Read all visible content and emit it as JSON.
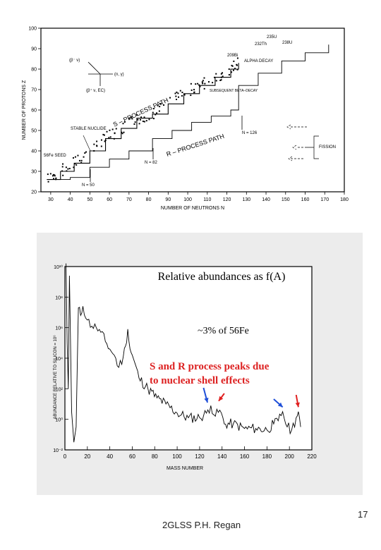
{
  "footer": {
    "text": "2GLSS P.H. Regan",
    "page_number": "17"
  },
  "chart_data": [
    {
      "type": "line",
      "xlabel": "NUMBER OF NEUTRONS N",
      "ylabel": "NUMBER OF PROTONS Z",
      "xlim": [
        25,
        180
      ],
      "ylim": [
        20,
        100
      ],
      "x_ticks": [
        30,
        40,
        50,
        60,
        70,
        80,
        90,
        100,
        110,
        120,
        130,
        140,
        150,
        160,
        170,
        180
      ],
      "y_ticks": [
        20,
        30,
        40,
        50,
        60,
        70,
        80,
        90,
        100
      ],
      "series": [
        {
          "name": "S-PROCESS PATH",
          "x": [
            28,
            35,
            42,
            50,
            58,
            66,
            74,
            82,
            90,
            98,
            106,
            114,
            122,
            126
          ],
          "y": [
            26,
            30,
            34,
            40,
            46,
            51,
            56,
            58,
            63,
            68,
            72,
            76,
            80,
            83
          ]
        },
        {
          "name": "R-PROCESS PATH",
          "x": [
            30,
            40,
            50,
            50,
            60,
            70,
            82,
            82,
            92,
            102,
            112,
            122,
            126,
            126,
            136,
            148,
            160,
            172
          ],
          "y": [
            26,
            27,
            28,
            32,
            36,
            40,
            42,
            46,
            50,
            54,
            57,
            60,
            62,
            72,
            78,
            84,
            88,
            92
          ]
        }
      ],
      "magic_numbers": [
        "N = 50",
        "N = 82",
        "N = 126"
      ],
      "annotations": [
        "S – PROCESS PATH",
        "R – PROCESS PATH",
        "STABLE NUCLIDE",
        "56Fe SEED",
        "ALPHA DECAY",
        "209Bi",
        "232Th",
        "235U",
        "238U",
        "SUBSEQUENT BETA–DECAY",
        "FISSION",
        "(n, γ)",
        "(β⁻ ν)",
        "(β⁺ ν, EC)"
      ]
    },
    {
      "type": "line",
      "title": "Relative abundances as f(A)",
      "xlabel": "MASS NUMBER",
      "ylabel": "ABUNDANCE RELATIVE TO SILICON = 10⁶",
      "xlim": [
        0,
        220
      ],
      "ylim": [
        -2,
        10
      ],
      "log_y": true,
      "x_ticks": [
        0,
        20,
        40,
        60,
        80,
        100,
        120,
        140,
        160,
        180,
        200,
        220
      ],
      "y_ticks": [
        "10⁻²",
        "10⁰",
        "10²",
        "10⁴",
        "10⁶",
        "10⁸",
        "10¹⁰"
      ],
      "series": [
        {
          "name": "abundance",
          "x": [
            1,
            2,
            3,
            4,
            6,
            8,
            10,
            12,
            14,
            16,
            20,
            24,
            28,
            32,
            36,
            40,
            44,
            48,
            52,
            54,
            56,
            58,
            60,
            66,
            74,
            82,
            90,
            100,
            110,
            120,
            126,
            130,
            134,
            138,
            142,
            150,
            160,
            170,
            180,
            186,
            190,
            194,
            198,
            202,
            206,
            208,
            210
          ],
          "y": [
            10.2,
            5,
            2,
            9.4,
            0.5,
            -1.5,
            -0.5,
            7.3,
            6.8,
            7.4,
            6.5,
            6.1,
            6.0,
            5.7,
            5.1,
            4.6,
            4.2,
            3.4,
            4.1,
            4.8,
            5.9,
            4.6,
            4.2,
            2.7,
            2.0,
            1.4,
            1.0,
            0.4,
            0.1,
            0.1,
            0.4,
            0.9,
            0.2,
            0.6,
            -0.3,
            -0.3,
            -0.6,
            -0.6,
            -0.7,
            -0.3,
            -0.1,
            0.5,
            -0.5,
            -0.7,
            0.1,
            0.5,
            -0.5
          ]
        }
      ],
      "annotations": [
        "~3% of 56Fe",
        "S and R process peaks due to nuclear shell effects"
      ],
      "colors": {
        "annotation_red": "#dd2222",
        "s_arrow_blue": "#1f4fd8",
        "r_arrow_red": "#e02020"
      }
    }
  ]
}
